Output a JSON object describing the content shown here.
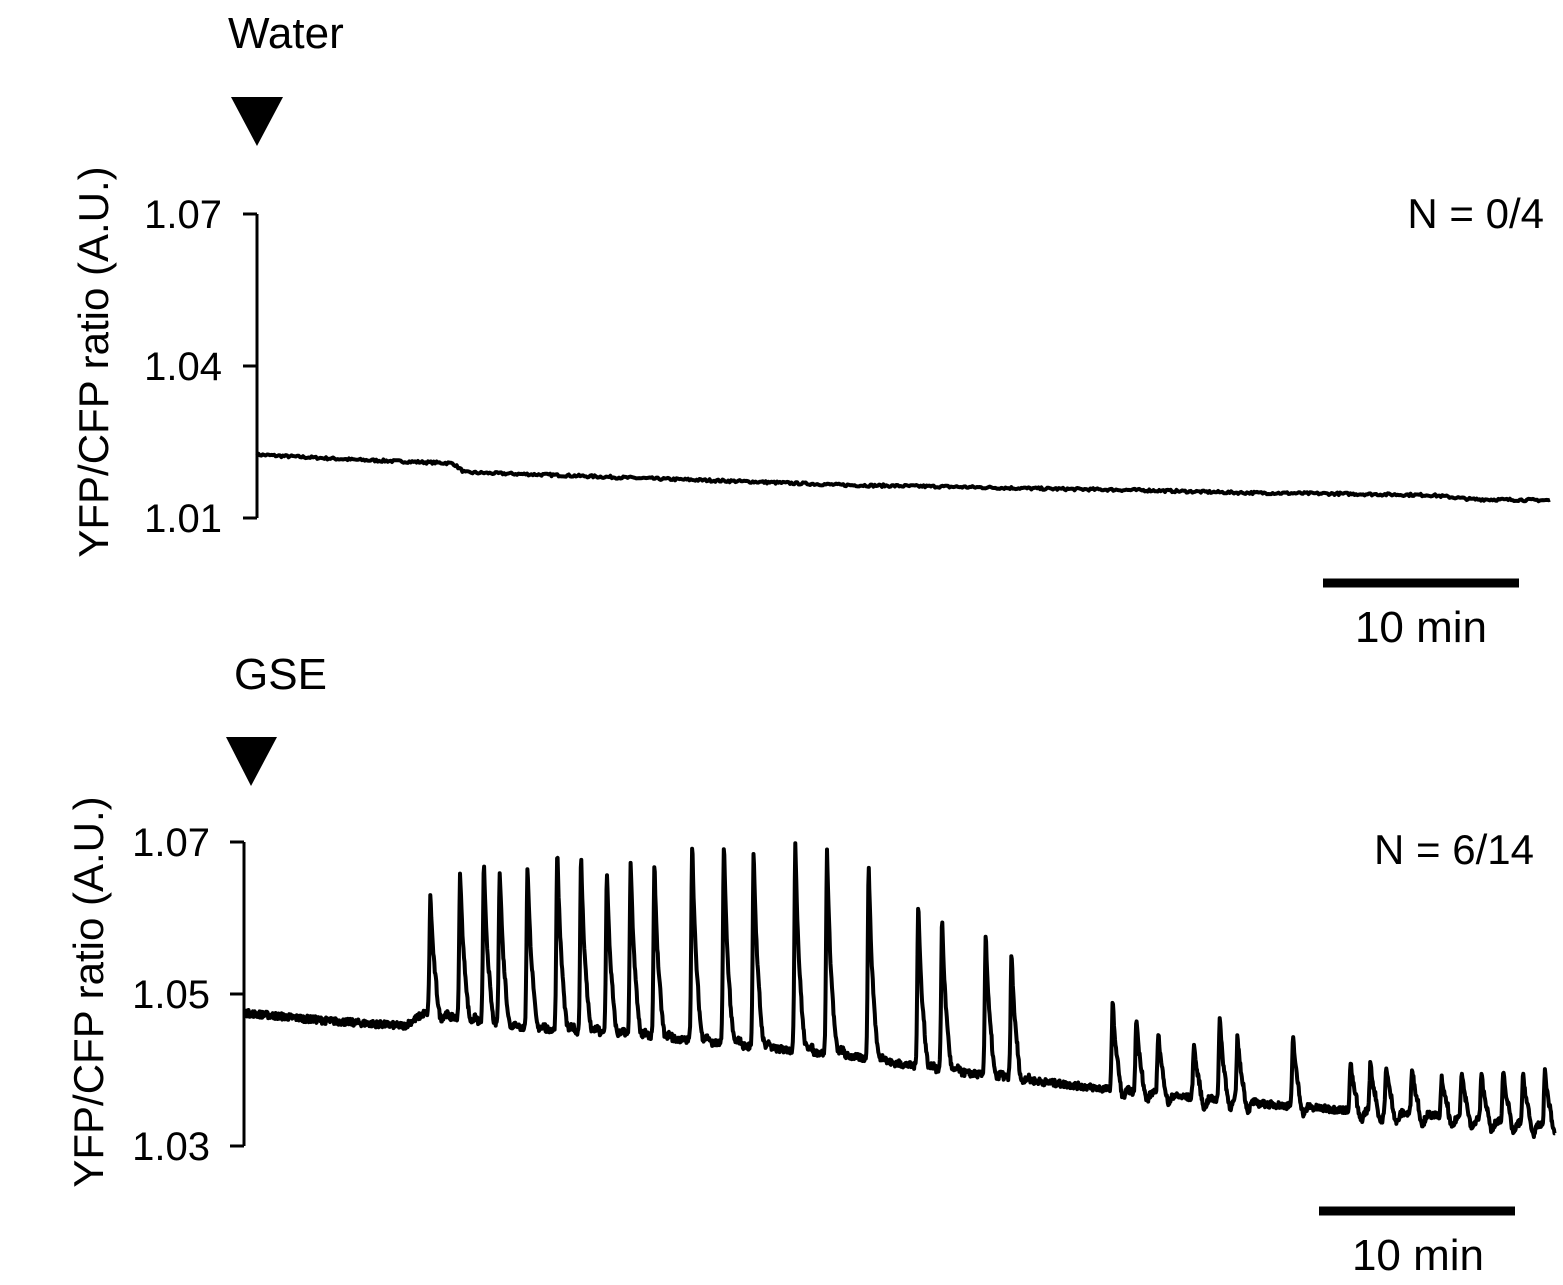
{
  "chart_data": [
    {
      "type": "line",
      "stimulus_label": "Water",
      "annotation": "N = 0/4",
      "ylabel": "YFP/CFP ratio (A.U.)",
      "yticks": [
        "1.07",
        "1.04",
        "1.01"
      ],
      "ylim": [
        1.01,
        1.07
      ],
      "scale_bar_label": "10 min",
      "x_unit": "min",
      "xlim": [
        0,
        66
      ],
      "series": [
        {
          "x": [
            0,
            5,
            10,
            10.6,
            15,
            20,
            25,
            30,
            35,
            40,
            45,
            50,
            55,
            60,
            62,
            66
          ],
          "values": [
            1.0225,
            1.0215,
            1.0208,
            1.019,
            1.0185,
            1.0178,
            1.0172,
            1.0165,
            1.0162,
            1.0158,
            1.0155,
            1.015,
            1.0148,
            1.0145,
            1.0137,
            1.0135
          ]
        }
      ]
    },
    {
      "type": "line",
      "stimulus_label": "GSE",
      "annotation": "N = 6/14",
      "ylabel": "YFP/CFP ratio (A.U.)",
      "yticks": [
        "1.07",
        "1.05",
        "1.03"
      ],
      "ylim": [
        1.03,
        1.07
      ],
      "scale_bar_label": "10 min",
      "x_unit": "min",
      "xlim": [
        0,
        66
      ],
      "baseline": {
        "x": [
          0,
          4,
          8,
          9,
          14,
          20,
          25,
          30,
          35,
          40,
          45,
          50,
          55,
          60,
          66
        ],
        "values": [
          1.0475,
          1.0465,
          1.0458,
          1.0475,
          1.0455,
          1.0445,
          1.0432,
          1.042,
          1.04,
          1.0385,
          1.037,
          1.0358,
          1.0348,
          1.034,
          1.0325
        ]
      },
      "spike_times": [
        9.3,
        10.8,
        12.0,
        12.8,
        14.2,
        15.7,
        16.9,
        18.2,
        19.4,
        20.6,
        22.5,
        24.1,
        25.6,
        27.7,
        29.3,
        31.4,
        33.9,
        35.1,
        37.3,
        38.6,
        43.7,
        44.9,
        46.0,
        47.8,
        49.1,
        50.0,
        52.8,
        55.7,
        56.7,
        57.5,
        58.8,
        60.3,
        61.3,
        62.3,
        63.4,
        64.4,
        65.5
      ],
      "spike_peaks": [
        1.063,
        1.066,
        1.067,
        1.066,
        1.067,
        1.069,
        1.068,
        1.066,
        1.067,
        1.067,
        1.07,
        1.07,
        1.069,
        1.07,
        1.069,
        1.067,
        1.062,
        1.06,
        1.058,
        1.0555,
        1.049,
        1.047,
        1.045,
        1.0435,
        1.047,
        1.0445,
        1.0445,
        1.041,
        1.041,
        1.0405,
        1.0405,
        1.039,
        1.04,
        1.0395,
        1.04,
        1.0395,
        1.04
      ]
    }
  ]
}
